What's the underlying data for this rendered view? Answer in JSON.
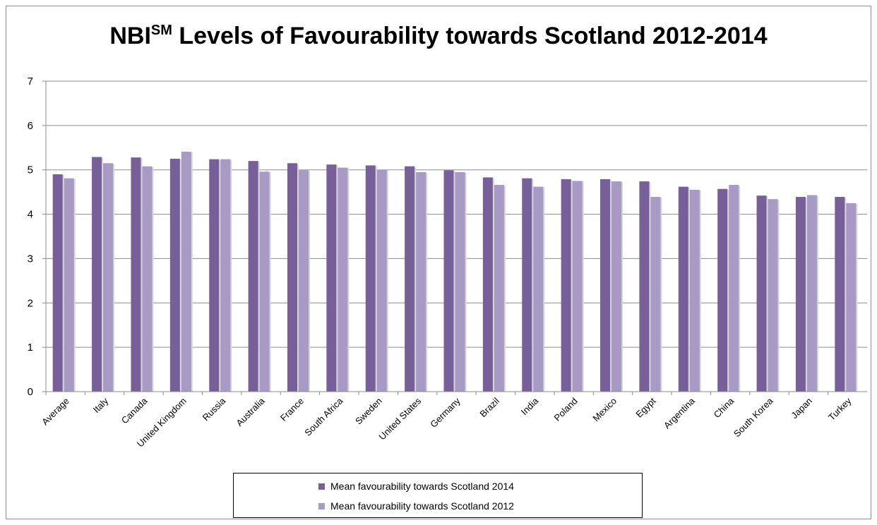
{
  "chart_data": {
    "type": "bar",
    "title_main": "NBI",
    "title_sup": "SM",
    "title_rest": " Levels of Favourability towards Scotland 2012-2014",
    "categories": [
      "Average",
      "Italy",
      "Canada",
      "United Kingdom",
      "Russia",
      "Australia",
      "France",
      "South Africa",
      "Sweden",
      "United States",
      "Germany",
      "Brazil",
      "India",
      "Poland",
      "Mexico",
      "Egypt",
      "Argentina",
      "China",
      "South Korea",
      "Japan",
      "Turkey"
    ],
    "series": [
      {
        "name": "Mean favourability towards Scotland 2014",
        "color": "#77609a",
        "values": [
          4.9,
          5.29,
          5.28,
          5.25,
          5.24,
          5.2,
          5.15,
          5.12,
          5.1,
          5.08,
          4.99,
          4.83,
          4.81,
          4.79,
          4.79,
          4.74,
          4.62,
          4.57,
          4.42,
          4.39,
          4.39
        ]
      },
      {
        "name": "Mean favourability towards Scotland 2012",
        "color": "#a79ac4",
        "values": [
          4.81,
          5.15,
          5.08,
          5.41,
          5.24,
          4.96,
          4.99,
          5.05,
          5.0,
          4.95,
          4.95,
          4.66,
          4.62,
          4.75,
          4.74,
          4.39,
          4.55,
          4.66,
          4.34,
          4.43,
          4.25
        ]
      }
    ],
    "yticks": [
      "0",
      "1",
      "2",
      "3",
      "4",
      "5",
      "6",
      "7"
    ],
    "ylim": [
      0,
      7
    ],
    "grid": true,
    "legend_position": "bottom"
  }
}
